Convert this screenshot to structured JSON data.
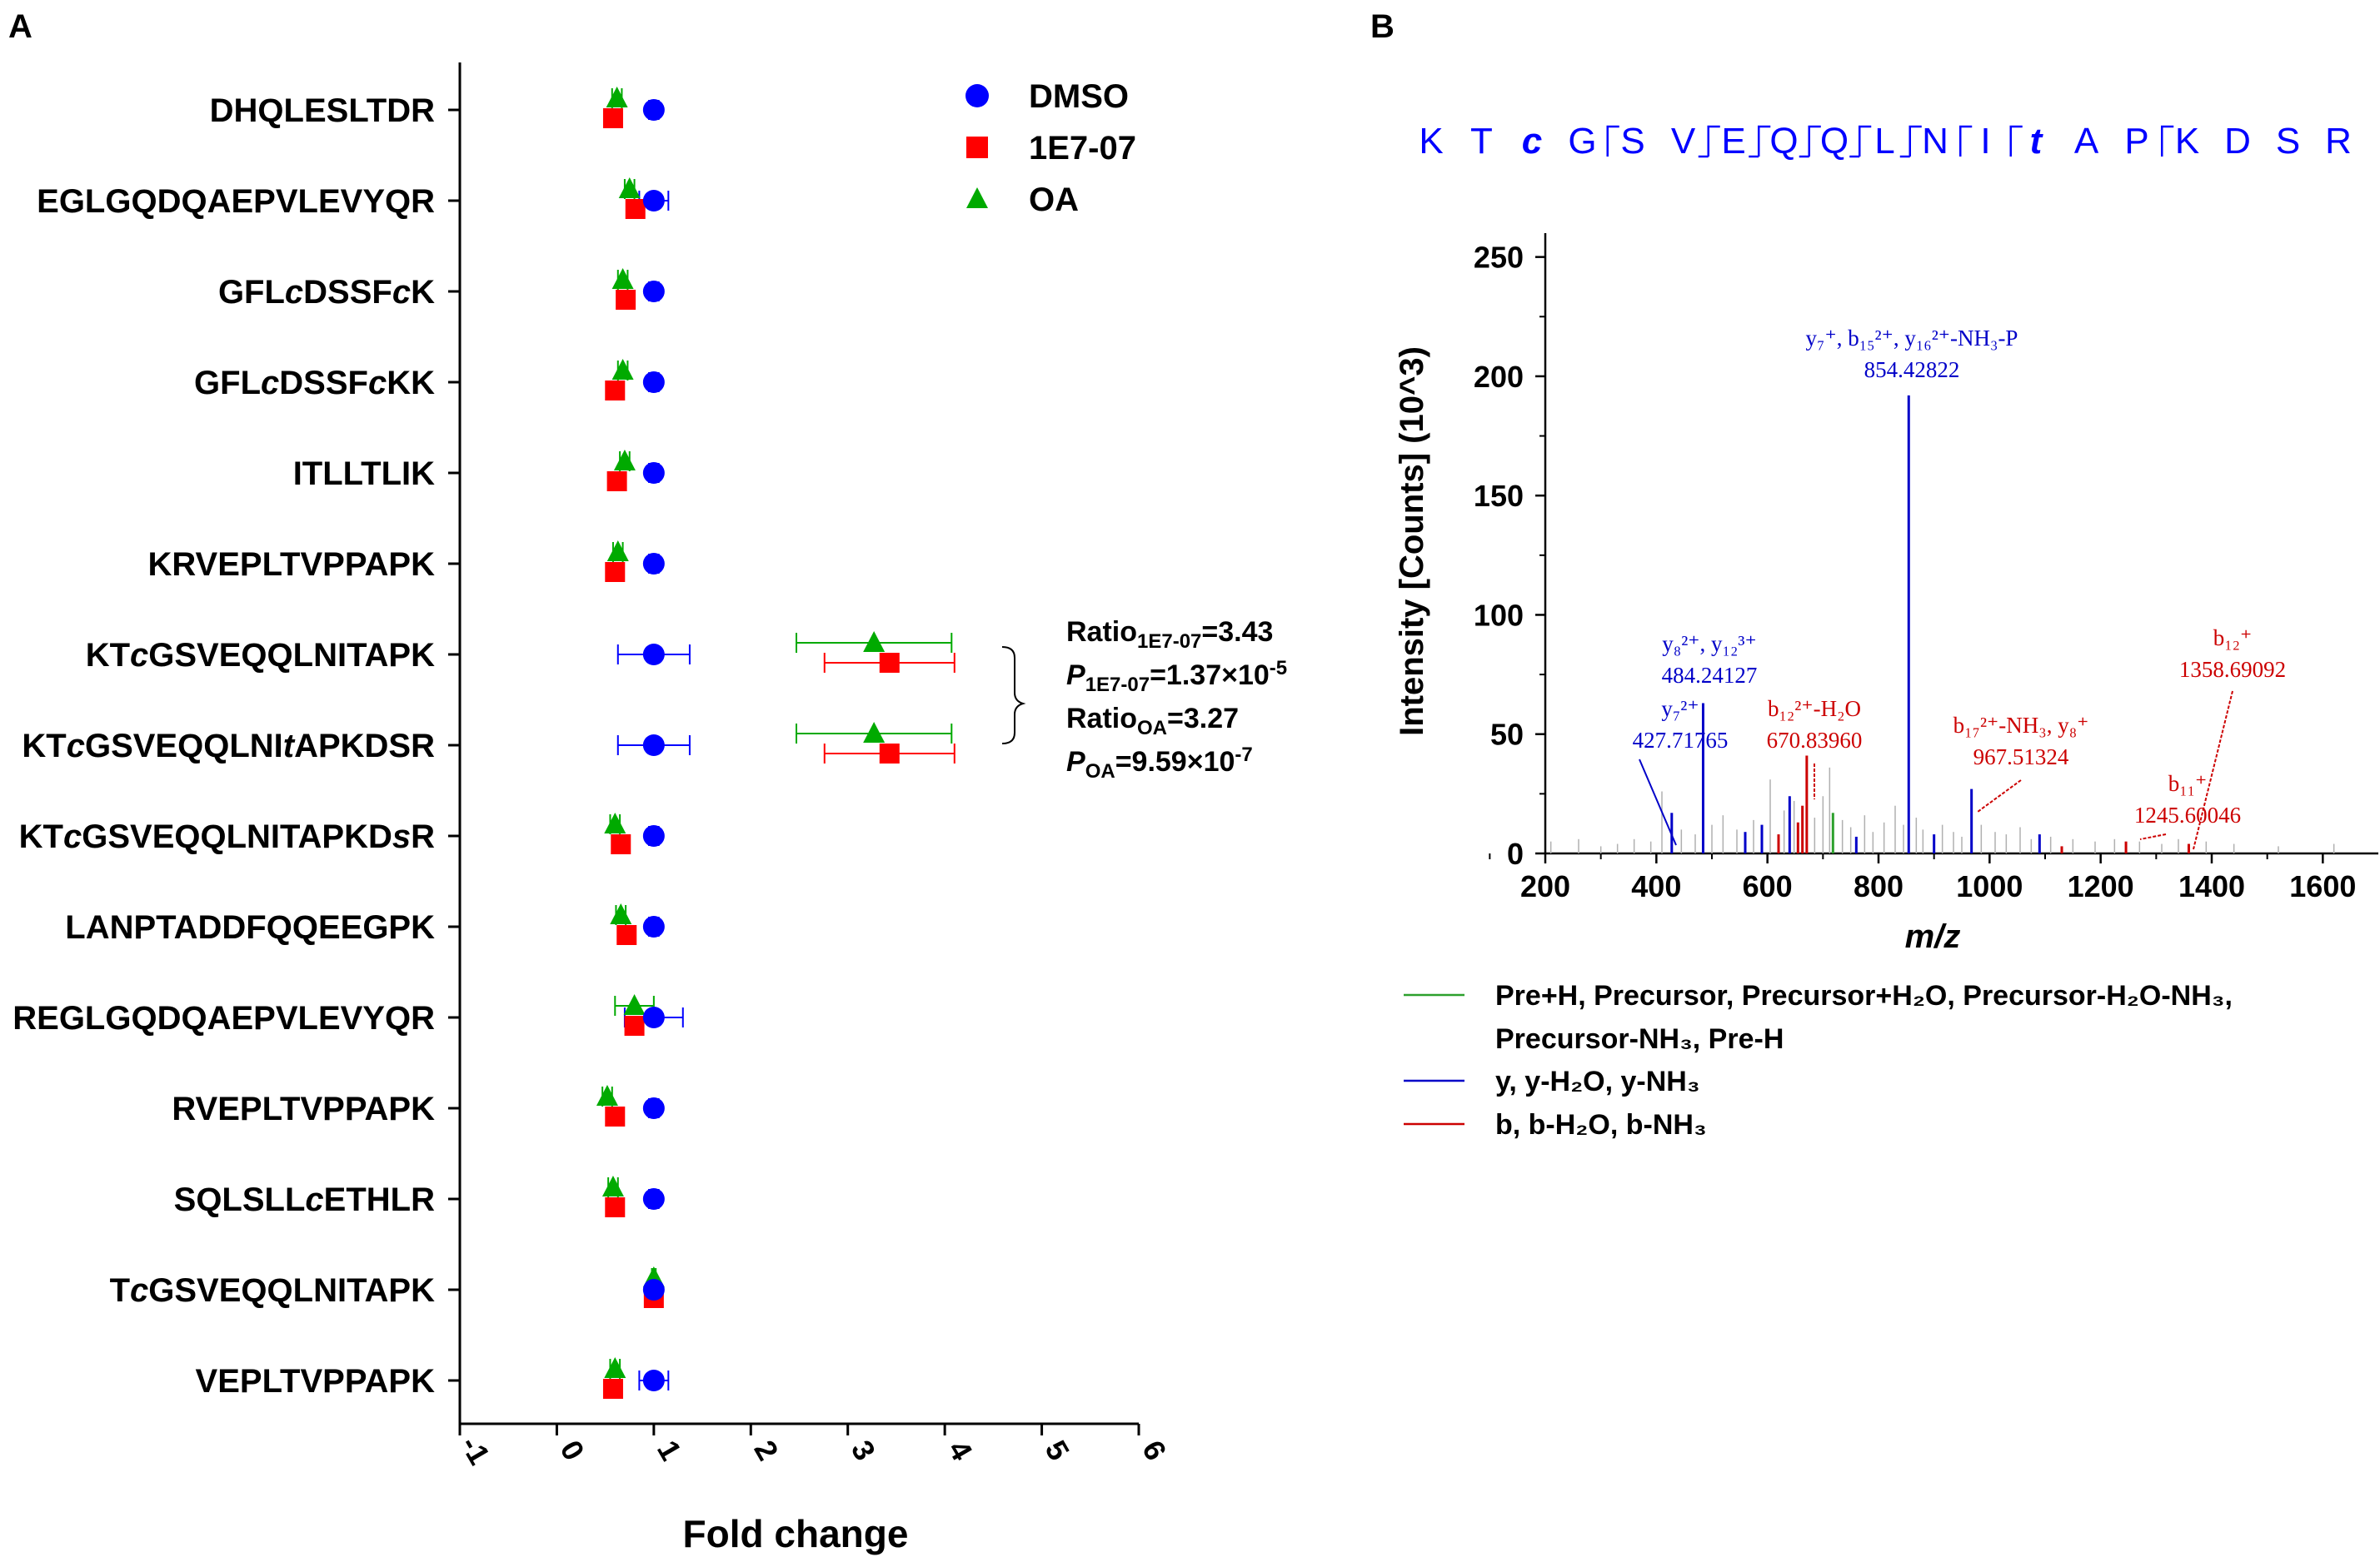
{
  "panels": {
    "a": "A",
    "b": "B"
  },
  "colors": {
    "dmso": "#0000ff",
    "e7": "#ff0000",
    "oa": "#00aa00",
    "precursor": "#2ca02c",
    "y_ion": "#0000c8",
    "b_ion": "#cc0000",
    "grey": "#b0b0b0"
  },
  "chart_data": [
    {
      "type": "scatter",
      "panel": "A",
      "xlabel": "Fold change",
      "xlim": [
        -1,
        6
      ],
      "xticks": [
        "-1",
        "0",
        "1",
        "2",
        "3",
        "4",
        "5",
        "6"
      ],
      "legend": [
        {
          "name": "DMSO",
          "marker": "circle"
        },
        {
          "name": "1E7-07",
          "marker": "square"
        },
        {
          "name": "OA",
          "marker": "triangle"
        }
      ],
      "categories": [
        {
          "plain": "DHQLESLTDR",
          "parts": [
            [
              "DHQLESLTDR",
              0
            ]
          ]
        },
        {
          "plain": "EGLGQDQAEPVLEVYQR",
          "parts": [
            [
              "EGLGQDQAEPVLEVYQR",
              0
            ]
          ]
        },
        {
          "plain": "GFLcDSSFcK",
          "parts": [
            [
              "GFL",
              0
            ],
            [
              "c",
              1
            ],
            [
              "DSSF",
              0
            ],
            [
              "c",
              1
            ],
            [
              "K",
              0
            ]
          ]
        },
        {
          "plain": "GFLcDSSFcKK",
          "parts": [
            [
              "GFL",
              0
            ],
            [
              "c",
              1
            ],
            [
              "DSSF",
              0
            ],
            [
              "c",
              1
            ],
            [
              "KK",
              0
            ]
          ]
        },
        {
          "plain": "ITLLTLIK",
          "parts": [
            [
              "ITLLTLIK",
              0
            ]
          ]
        },
        {
          "plain": "KRVEPLTVPPAPK",
          "parts": [
            [
              "KRVEPLTVPPAPK",
              0
            ]
          ]
        },
        {
          "plain": "KTcGSVEQQLNITAPK",
          "parts": [
            [
              "KT",
              0
            ],
            [
              "c",
              1
            ],
            [
              "GSVEQQLNITAPK",
              0
            ]
          ]
        },
        {
          "plain": "KTcGSVEQQLNItAPKDSR",
          "parts": [
            [
              "KT",
              0
            ],
            [
              "c",
              1
            ],
            [
              "GSVEQQLNI",
              0
            ],
            [
              "t",
              1
            ],
            [
              "APKDSR",
              0
            ]
          ]
        },
        {
          "plain": "KTcGSVEQQLNITAPKDsR",
          "parts": [
            [
              "KT",
              0
            ],
            [
              "c",
              1
            ],
            [
              "GSVEQQLNITAPKD",
              0
            ],
            [
              "s",
              1
            ],
            [
              "R",
              0
            ]
          ]
        },
        {
          "plain": "LANPTADDFQQEEGPK",
          "parts": [
            [
              "LANPTADDFQQEEGPK",
              0
            ]
          ]
        },
        {
          "plain": "REGLGQDQAEPVLEVYQR",
          "parts": [
            [
              "REGLGQDQAEPVLEVYQR",
              0
            ]
          ]
        },
        {
          "plain": "RVEPLTVPPAPK",
          "parts": [
            [
              "RVEPLTVPPAPK",
              0
            ]
          ]
        },
        {
          "plain": "SQLSLLcETHLR",
          "parts": [
            [
              "SQLSLL",
              0
            ],
            [
              "c",
              1
            ],
            [
              "ETHLR",
              0
            ]
          ]
        },
        {
          "plain": "TcGSVEQQLNITAPK",
          "parts": [
            [
              "T",
              0
            ],
            [
              "c",
              1
            ],
            [
              "GSVEQQLNITAPK",
              0
            ]
          ]
        },
        {
          "plain": "VEPLTVPPAPK",
          "parts": [
            [
              "VEPLTVPPAPK",
              0
            ]
          ]
        }
      ],
      "series": [
        {
          "name": "DMSO",
          "values": [
            1,
            1,
            1,
            1,
            1,
            1,
            1,
            1,
            1,
            1,
            1,
            1,
            1,
            1,
            1
          ],
          "err": [
            0.05,
            0.15,
            0.05,
            0.05,
            0.05,
            0.05,
            0.37,
            0.37,
            0.05,
            0.05,
            0.3,
            0.05,
            0.05,
            0.02,
            0.15
          ]
        },
        {
          "name": "1E7-07",
          "values": [
            0.58,
            0.81,
            0.71,
            0.6,
            0.62,
            0.6,
            3.43,
            3.43,
            0.66,
            0.72,
            0.8,
            0.6,
            0.6,
            1.0,
            0.58
          ],
          "err": [
            0.05,
            0.05,
            0.05,
            0.05,
            0.05,
            0.05,
            0.67,
            0.67,
            0.05,
            0.05,
            0.05,
            0.05,
            0.05,
            0.02,
            0.05
          ]
        },
        {
          "name": "OA",
          "values": [
            0.62,
            0.75,
            0.68,
            0.68,
            0.7,
            0.63,
            3.27,
            3.27,
            0.6,
            0.66,
            0.8,
            0.52,
            0.58,
            1.0,
            0.6
          ],
          "err": [
            0.05,
            0.05,
            0.05,
            0.05,
            0.05,
            0.05,
            0.8,
            0.8,
            0.05,
            0.05,
            0.2,
            0.05,
            0.05,
            0.02,
            0.05
          ]
        }
      ],
      "annotations": [
        {
          "label": "Ratio",
          "sub": "1E7-07",
          "value": "=3.43"
        },
        {
          "label": "P",
          "sub": "1E7-07",
          "value": "=1.37×10",
          "sup": "-5"
        },
        {
          "label": "Ratio",
          "sub": "OA",
          "value": "=3.27"
        },
        {
          "label": "P",
          "sub": "OA",
          "value": "=9.59×10",
          "sup": "-7"
        }
      ]
    },
    {
      "type": "bar",
      "panel": "B",
      "subtype": "mass-spectrum",
      "xlabel": "m/z",
      "ylabel": "Intensity [Counts] (10^3)",
      "xlim": [
        200,
        1700
      ],
      "ylim": [
        0,
        260
      ],
      "xticks": [
        200,
        400,
        600,
        800,
        1000,
        1200,
        1400,
        1600
      ],
      "yticks": [
        0,
        50,
        100,
        150,
        200,
        250
      ],
      "sequence": [
        {
          "t": "K",
          "i": 0
        },
        {
          "t": "T",
          "i": 0
        },
        {
          "t": "c",
          "i": 1
        },
        {
          "t": "G",
          "i": 0
        },
        {
          "t": "S",
          "i": 0
        },
        {
          "t": "V",
          "i": 0
        },
        {
          "t": "E",
          "i": 0
        },
        {
          "t": "Q",
          "i": 0
        },
        {
          "t": "Q",
          "i": 0
        },
        {
          "t": "L",
          "i": 0
        },
        {
          "t": "N",
          "i": 0
        },
        {
          "t": "I",
          "i": 0
        },
        {
          "t": "t",
          "i": 1
        },
        {
          "t": "A",
          "i": 0
        },
        {
          "t": "P",
          "i": 0
        },
        {
          "t": "K",
          "i": 0
        },
        {
          "t": "D",
          "i": 0
        },
        {
          "t": "S",
          "i": 0
        },
        {
          "t": "R",
          "i": 0
        }
      ],
      "peaks": [
        {
          "mz": 427.7,
          "int": 17,
          "ion": "y"
        },
        {
          "mz": 484.2,
          "int": 63,
          "ion": "y"
        },
        {
          "mz": 640,
          "int": 24,
          "ion": "y"
        },
        {
          "mz": 655,
          "int": 13,
          "ion": "b"
        },
        {
          "mz": 663,
          "int": 20,
          "ion": "b"
        },
        {
          "mz": 670.8,
          "int": 41,
          "ion": "b"
        },
        {
          "mz": 718,
          "int": 17,
          "ion": "precursor"
        },
        {
          "mz": 854.4,
          "int": 192,
          "ion": "y"
        },
        {
          "mz": 967.5,
          "int": 27,
          "ion": "y"
        },
        {
          "mz": 1245.6,
          "int": 5,
          "ion": "b"
        },
        {
          "mz": 1358.7,
          "int": 4,
          "ion": "b"
        },
        {
          "mz": 560,
          "int": 9,
          "ion": "y"
        },
        {
          "mz": 590,
          "int": 12,
          "ion": "y"
        },
        {
          "mz": 760,
          "int": 7,
          "ion": "y"
        },
        {
          "mz": 900,
          "int": 8,
          "ion": "y"
        },
        {
          "mz": 1090,
          "int": 8,
          "ion": "y"
        },
        {
          "mz": 1130,
          "int": 3,
          "ion": "b"
        },
        {
          "mz": 620,
          "int": 8,
          "ion": "b"
        },
        {
          "mz": 210,
          "int": 5,
          "ion": "grey"
        },
        {
          "mz": 260,
          "int": 6,
          "ion": "grey"
        },
        {
          "mz": 300,
          "int": 3,
          "ion": "grey"
        },
        {
          "mz": 330,
          "int": 4,
          "ion": "grey"
        },
        {
          "mz": 360,
          "int": 6,
          "ion": "grey"
        },
        {
          "mz": 390,
          "int": 5,
          "ion": "grey"
        },
        {
          "mz": 410,
          "int": 26,
          "ion": "grey"
        },
        {
          "mz": 445,
          "int": 10,
          "ion": "grey"
        },
        {
          "mz": 470,
          "int": 8,
          "ion": "grey"
        },
        {
          "mz": 500,
          "int": 12,
          "ion": "grey"
        },
        {
          "mz": 520,
          "int": 16,
          "ion": "grey"
        },
        {
          "mz": 545,
          "int": 10,
          "ion": "grey"
        },
        {
          "mz": 575,
          "int": 14,
          "ion": "grey"
        },
        {
          "mz": 605,
          "int": 31,
          "ion": "grey"
        },
        {
          "mz": 630,
          "int": 18,
          "ion": "grey"
        },
        {
          "mz": 648,
          "int": 22,
          "ion": "grey"
        },
        {
          "mz": 685,
          "int": 15,
          "ion": "grey"
        },
        {
          "mz": 700,
          "int": 24,
          "ion": "grey"
        },
        {
          "mz": 712,
          "int": 36,
          "ion": "grey"
        },
        {
          "mz": 735,
          "int": 14,
          "ion": "grey"
        },
        {
          "mz": 750,
          "int": 11,
          "ion": "grey"
        },
        {
          "mz": 775,
          "int": 16,
          "ion": "grey"
        },
        {
          "mz": 790,
          "int": 9,
          "ion": "grey"
        },
        {
          "mz": 810,
          "int": 13,
          "ion": "grey"
        },
        {
          "mz": 830,
          "int": 20,
          "ion": "grey"
        },
        {
          "mz": 845,
          "int": 12,
          "ion": "grey"
        },
        {
          "mz": 868,
          "int": 15,
          "ion": "grey"
        },
        {
          "mz": 880,
          "int": 10,
          "ion": "grey"
        },
        {
          "mz": 915,
          "int": 12,
          "ion": "grey"
        },
        {
          "mz": 935,
          "int": 9,
          "ion": "grey"
        },
        {
          "mz": 950,
          "int": 7,
          "ion": "grey"
        },
        {
          "mz": 985,
          "int": 12,
          "ion": "grey"
        },
        {
          "mz": 1010,
          "int": 9,
          "ion": "grey"
        },
        {
          "mz": 1030,
          "int": 8,
          "ion": "grey"
        },
        {
          "mz": 1055,
          "int": 11,
          "ion": "grey"
        },
        {
          "mz": 1075,
          "int": 6,
          "ion": "grey"
        },
        {
          "mz": 1110,
          "int": 7,
          "ion": "grey"
        },
        {
          "mz": 1150,
          "int": 6,
          "ion": "grey"
        },
        {
          "mz": 1190,
          "int": 5,
          "ion": "grey"
        },
        {
          "mz": 1225,
          "int": 6,
          "ion": "grey"
        },
        {
          "mz": 1270,
          "int": 5,
          "ion": "grey"
        },
        {
          "mz": 1310,
          "int": 4,
          "ion": "grey"
        },
        {
          "mz": 1340,
          "int": 6,
          "ion": "grey"
        },
        {
          "mz": 1390,
          "int": 5,
          "ion": "grey"
        },
        {
          "mz": 1440,
          "int": 4,
          "ion": "grey"
        },
        {
          "mz": 1520,
          "int": 3,
          "ion": "grey"
        },
        {
          "mz": 1620,
          "int": 4,
          "ion": "grey"
        }
      ],
      "peak_labels": [
        {
          "ion": "y",
          "lines": [
            "y₇²⁺",
            "427.71765"
          ],
          "mz": 427.7,
          "int": 17
        },
        {
          "ion": "y",
          "lines": [
            "y₈²⁺, y₁₂³⁺",
            "484.24127"
          ],
          "mz": 484.2,
          "int": 63
        },
        {
          "ion": "b",
          "lines": [
            "b₁₂²⁺-H₂O",
            "670.83960"
          ],
          "mz": 670.8,
          "int": 41
        },
        {
          "ion": "y",
          "lines": [
            "y₇⁺, b₁₅²⁺, y₁₆²⁺-NH₃-P",
            "854.42822"
          ],
          "mz": 854.4,
          "int": 192
        },
        {
          "ion": "b",
          "lines": [
            "b₁₇²⁺-NH₃, y₈⁺",
            "967.51324"
          ],
          "mz": 967.5,
          "int": 27
        },
        {
          "ion": "b",
          "lines": [
            "b₁₁⁺",
            "1245.60046"
          ],
          "mz": 1245.6,
          "int": 5
        },
        {
          "ion": "b",
          "lines": [
            "b₁₂⁺",
            "1358.69092"
          ],
          "mz": 1358.7,
          "int": 4
        }
      ],
      "legend": [
        {
          "ion": "precursor",
          "lines": [
            "Pre+H, Precursor, Precursor+H₂O, Precursor-H₂O-NH₃,",
            "Precursor-NH₃, Pre-H"
          ]
        },
        {
          "ion": "y",
          "lines": [
            "y, y-H₂O, y-NH₃"
          ]
        },
        {
          "ion": "b",
          "lines": [
            "b, b-H₂O, b-NH₃"
          ]
        }
      ]
    }
  ]
}
